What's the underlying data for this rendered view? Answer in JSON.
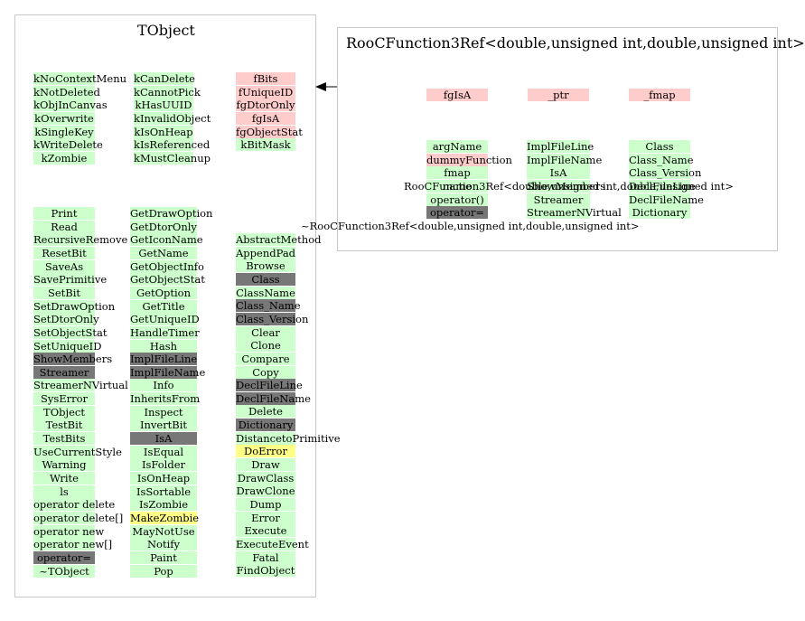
{
  "tobject": {
    "title": "TObject",
    "enums1": [
      "kNoContextMenu",
      "kNotDeleted",
      "kObjInCanvas",
      "kOverwrite",
      "kSingleKey",
      "kWriteDelete",
      "kZombie"
    ],
    "enums2": [
      "kCanDelete",
      "kCannotPick",
      "kHasUUID",
      "kInvalidObject",
      "kIsOnHeap",
      "kIsReferenced",
      "kMustCleanup"
    ],
    "members": [
      "fBits",
      "fUniqueID",
      "fgDtorOnly",
      "fgIsA",
      "fgObjectStat",
      "kBitMask"
    ],
    "methods1": [
      "Print",
      "Read",
      "RecursiveRemove",
      "ResetBit",
      "SaveAs",
      "SavePrimitive",
      "SetBit",
      "SetDrawOption",
      "SetDtorOnly",
      "SetObjectStat",
      "SetUniqueID",
      "ShowMembers",
      "Streamer",
      "StreamerNVirtual",
      "SysError",
      "TObject",
      "TestBit",
      "TestBits",
      "UseCurrentStyle",
      "Warning",
      "Write",
      "ls",
      "operator delete",
      "operator delete[]",
      "operator new",
      "operator new[]",
      "operator=",
      "~TObject"
    ],
    "methods2": [
      "GetDrawOption",
      "GetDtorOnly",
      "GetIconName",
      "GetName",
      "GetObjectInfo",
      "GetObjectStat",
      "GetOption",
      "GetTitle",
      "GetUniqueID",
      "HandleTimer",
      "Hash",
      "ImplFileLine",
      "ImplFileName",
      "Info",
      "InheritsFrom",
      "Inspect",
      "InvertBit",
      "IsA",
      "IsEqual",
      "IsFolder",
      "IsOnHeap",
      "IsSortable",
      "IsZombie",
      "MakeZombie",
      "MayNotUse",
      "Notify",
      "Paint",
      "Pop"
    ],
    "methods3": [
      "AbstractMethod",
      "AppendPad",
      "Browse",
      "Class",
      "ClassName",
      "Class_Name",
      "Class_Version",
      "Clear",
      "Clone",
      "Compare",
      "Copy",
      "DeclFileLine",
      "DeclFileName",
      "Delete",
      "Dictionary",
      "DistancetoPrimitive",
      "DoError",
      "Draw",
      "DrawClass",
      "DrawClone",
      "Dump",
      "Error",
      "Execute",
      "ExecuteEvent",
      "Fatal",
      "FindObject"
    ]
  },
  "roocf": {
    "title": "RooCFunction3Ref<double,unsigned int,double,unsigned int>",
    "members": [
      "fgIsA",
      "_ptr",
      "_fmap"
    ],
    "methods1": [
      "argName",
      "dummyFunction",
      "fmap",
      "name",
      "operator()",
      "operator="
    ],
    "methods2": [
      "ImplFileLine",
      "ImplFileName",
      "IsA",
      "ShowMembers",
      "Streamer",
      "StreamerNVirtual"
    ],
    "methods3": [
      "Class",
      "Class_Name",
      "Class_Version",
      "DeclFileLine",
      "DeclFileName",
      "Dictionary"
    ],
    "overlay_ctor": "RooCFunction3Ref<double,unsigned int,double,unsigned int>",
    "overlay_dtor": "~RooCFunction3Ref<double,unsigned int,double,unsigned int>"
  },
  "colors": {
    "green": "#ccffcc",
    "pink": "#ffcccc",
    "gray": "#777777",
    "yellow": "#ffff88",
    "border": "#c8c8c8"
  },
  "highlights": {
    "gray": [
      "ShowMembers",
      "Streamer",
      "operator=",
      "ImplFileLine",
      "ImplFileName",
      "IsA",
      "Class",
      "Class_Name",
      "Class_Version",
      "DeclFileLine",
      "DeclFileName",
      "Dictionary"
    ],
    "yellow": [
      "MakeZombie",
      "DoError"
    ],
    "pink_methods": [
      "dummyFunction"
    ]
  },
  "icons": {
    "inheritance_arrow": "arrow-left-icon"
  }
}
